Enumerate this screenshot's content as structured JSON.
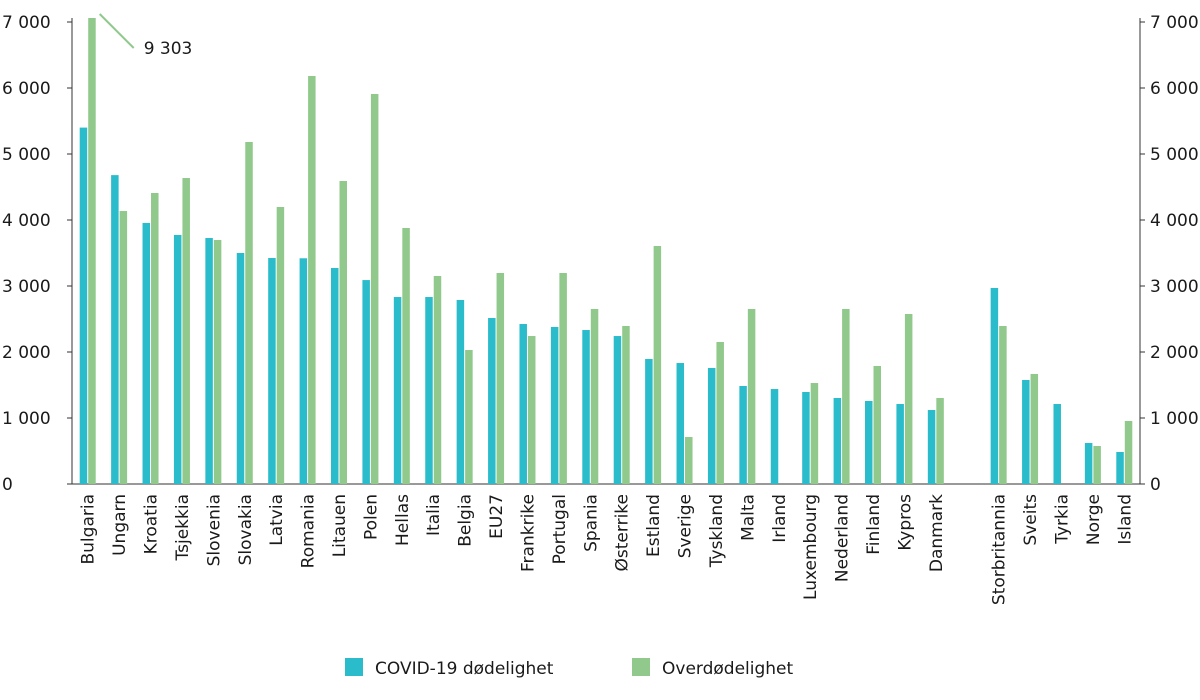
{
  "chart_data": {
    "type": "bar",
    "categories": [
      "Bulgaria",
      "Ungarn",
      "Kroatia",
      "Tsjekkia",
      "Slovenia",
      "Slovakia",
      "Latvia",
      "Romania",
      "Litauen",
      "Polen",
      "Hellas",
      "Italia",
      "Belgia",
      "EU27",
      "Frankrike",
      "Portugal",
      "Spania",
      "Østerrike",
      "Estland",
      "Sverige",
      "Tyskland",
      "Malta",
      "Irland",
      "Luxembourg",
      "Nederland",
      "Finland",
      "Kypros",
      "Danmark",
      null,
      "Storbritannia",
      "Sveits",
      "Tyrkia",
      "Norge",
      "Island"
    ],
    "series": [
      {
        "name": "COVID-19 dødelighet",
        "color": "#2bbccc",
        "values": [
          5400,
          4680,
          3955,
          3773,
          3727,
          3500,
          3424,
          3420,
          3273,
          3090,
          2833,
          2833,
          2788,
          2515,
          2424,
          2379,
          2333,
          2242,
          1894,
          1833,
          1758,
          1485,
          1439,
          1394,
          1303,
          1258,
          1212,
          1121,
          null,
          2970,
          1576,
          1212,
          621,
          485
        ]
      },
      {
        "name": "Overdødelighet",
        "color": "#90c98b",
        "values": [
          9303,
          4136,
          4409,
          4636,
          3697,
          5182,
          4197,
          6182,
          4591,
          5909,
          3879,
          3152,
          2030,
          3197,
          2242,
          3197,
          2652,
          2394,
          3606,
          712,
          2152,
          2652,
          null,
          1530,
          2652,
          1788,
          2576,
          1303,
          null,
          2394,
          1667,
          null,
          576,
          955
        ],
        "value_labels": [
          "9 303",
          null,
          null,
          null,
          null,
          null,
          null,
          null,
          null,
          null,
          null,
          null,
          null,
          null,
          null,
          null,
          null,
          null,
          null,
          null,
          null,
          null,
          null,
          null,
          null,
          null,
          null,
          null,
          null,
          null,
          null,
          null,
          null,
          null
        ]
      }
    ],
    "ylim": [
      0,
      7000
    ],
    "yticks": [
      0,
      {
        "value": 1000,
        "label": "1 000"
      },
      {
        "value": 2000,
        "label": "2 000"
      },
      {
        "value": 3000,
        "label": "3 000"
      },
      {
        "value": 4000,
        "label": "4 000"
      },
      {
        "value": 5000,
        "label": "5 000"
      },
      {
        "value": 6000,
        "label": "6 000"
      },
      {
        "value": 7000,
        "label": "7 000"
      }
    ],
    "y2lim": [
      0,
      7000
    ],
    "y2ticks": [
      0,
      {
        "value": 1000,
        "label": "1 000"
      },
      {
        "value": 2000,
        "label": "2 000"
      },
      {
        "value": 3000,
        "label": "3 000"
      },
      {
        "value": 4000,
        "label": "4 000"
      },
      {
        "value": 5000,
        "label": "5 000"
      },
      {
        "value": 6000,
        "label": "6 000"
      },
      {
        "value": 7000,
        "label": "7 000"
      }
    ],
    "grid": false,
    "legend": "bottom"
  }
}
